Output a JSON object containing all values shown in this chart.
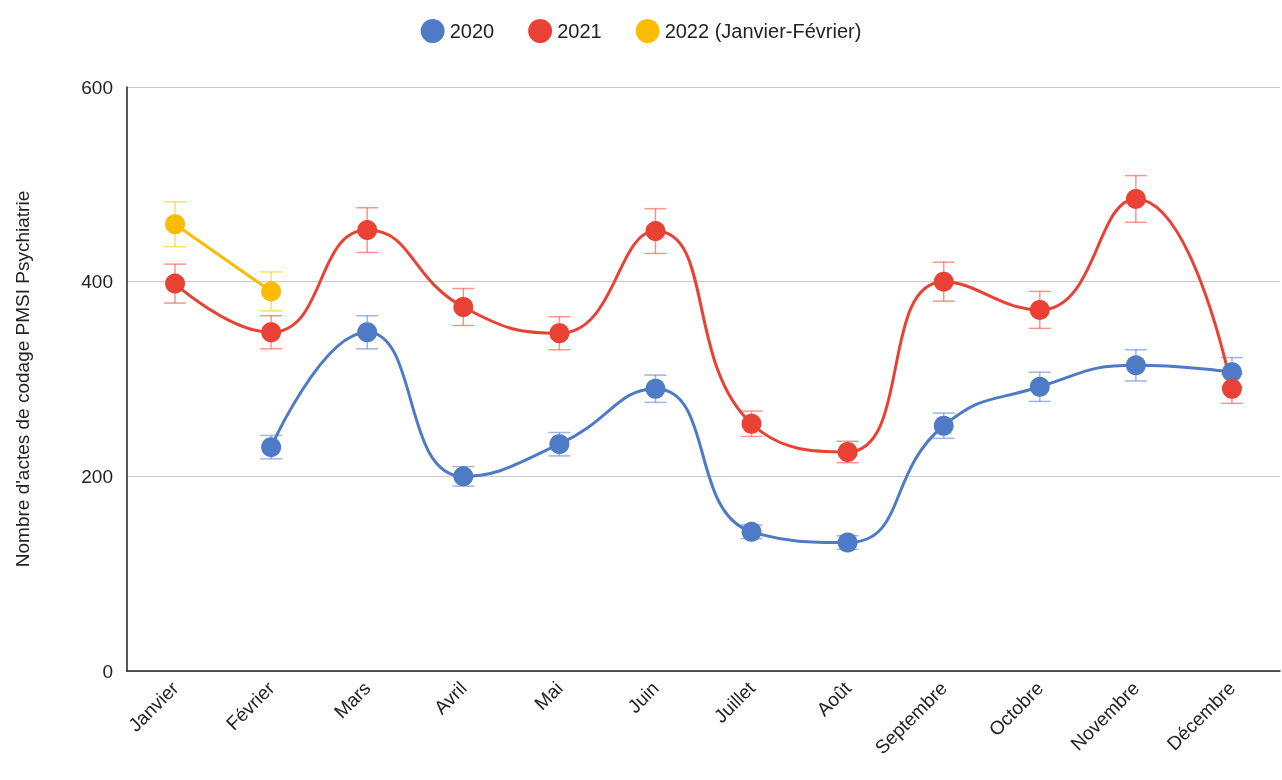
{
  "chart_data": {
    "type": "line",
    "ylabel": "Nombre d'actes de codage PMSI Psychiatrie",
    "categories": [
      "Janvier",
      "Février",
      "Mars",
      "Avril",
      "Mai",
      "Juin",
      "Juillet",
      "Août",
      "Septembre",
      "Octobre",
      "Novembre",
      "Décembre"
    ],
    "series": [
      {
        "name": "2020",
        "color": "#4f7ac6",
        "values": [
          null,
          230,
          348,
          200,
          233,
          290,
          143,
          132,
          252,
          292,
          314,
          307
        ],
        "errors": [
          null,
          12,
          17,
          10,
          12,
          14,
          7,
          7,
          13,
          15,
          16,
          15
        ]
      },
      {
        "name": "2021",
        "color": "#e94235",
        "values": [
          398,
          348,
          453,
          374,
          347,
          452,
          254,
          225,
          400,
          371,
          485,
          290
        ],
        "errors": [
          20,
          17,
          23,
          19,
          17,
          23,
          13,
          11,
          20,
          19,
          24,
          15
        ]
      },
      {
        "name": "2022 (Janvier-Février)",
        "color": "#fbbc04",
        "values": [
          459,
          390,
          null,
          null,
          null,
          null,
          null,
          null,
          null,
          null,
          null,
          null
        ],
        "errors": [
          23,
          20,
          null,
          null,
          null,
          null,
          null,
          null,
          null,
          null,
          null,
          null
        ]
      }
    ],
    "ylim": [
      0,
      600
    ],
    "yticks": [
      0,
      200,
      400,
      600
    ],
    "grid": "y",
    "legend": "top",
    "marker": "circle",
    "line_style": "solid"
  }
}
